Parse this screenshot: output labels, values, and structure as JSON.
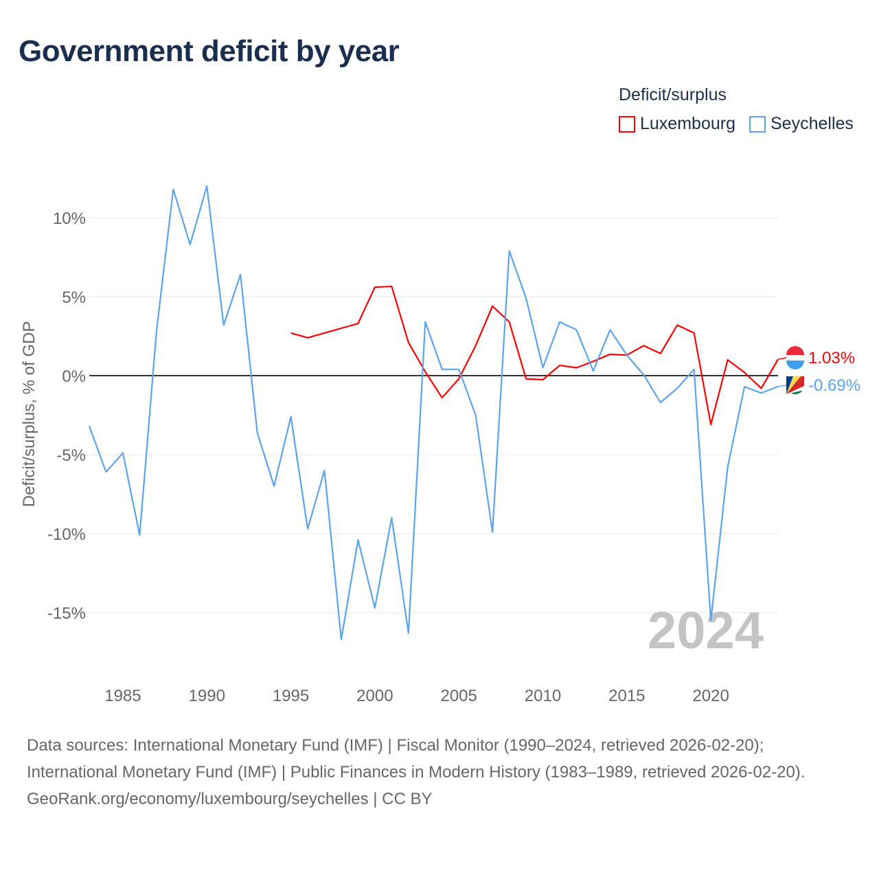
{
  "title": "Government deficit by year",
  "legend": {
    "title": "Deficit/surplus",
    "items": [
      {
        "name": "Luxembourg",
        "color": "#ff0000"
      },
      {
        "name": "Seychelles",
        "color": "#5ba4ec"
      }
    ]
  },
  "footer": {
    "line1": "Data sources: International Monetary Fund (IMF) | Fiscal Monitor (1990–2024, retrieved 2026-02-20); International Monetary Fund (IMF) | Public Finances in Modern History (1983–1989, retrieved 2026-02-20).",
    "line2": "GeoRank.org/economy/luxembourg/seychelles | CC BY"
  },
  "chart_data": {
    "type": "line",
    "title": "Government deficit by year",
    "ylabel": "Deficit/surplus, % of GDP",
    "xlim": [
      1983,
      2024
    ],
    "ylim": [
      -18,
      13
    ],
    "yticks": [
      10,
      5,
      0,
      -5,
      -10,
      -15
    ],
    "ytick_labels": [
      "10%",
      "5%",
      "0%",
      "-5%",
      "-10%",
      "-15%"
    ],
    "xticks": [
      1985,
      1990,
      1995,
      2000,
      2005,
      2010,
      2015,
      2020
    ],
    "year_watermark": "2024",
    "series": [
      {
        "name": "Luxembourg",
        "color": "#ff0000",
        "end_label": "1.03%",
        "start": 1995,
        "values": [
          2.7,
          2.4,
          2.7,
          3.0,
          3.3,
          5.6,
          5.65,
          2.1,
          0.25,
          -1.4,
          -0.2,
          1.9,
          4.4,
          3.4,
          -0.2,
          -0.26,
          0.65,
          0.5,
          0.9,
          1.35,
          1.3,
          1.9,
          1.4,
          3.2,
          2.7,
          -3.1,
          1.0,
          0.2,
          -0.8,
          1.03
        ]
      },
      {
        "name": "Seychelles",
        "color": "#5ba4ec",
        "end_label": "-0.69%",
        "start": 1983,
        "values": [
          -3.2,
          -6.1,
          -4.9,
          -10.1,
          2.8,
          11.8,
          8.3,
          12.0,
          3.2,
          6.4,
          -3.6,
          -7.0,
          -2.6,
          -9.7,
          -6.0,
          -16.7,
          -10.4,
          -14.7,
          -9.0,
          -16.3,
          3.4,
          0.4,
          0.4,
          -2.5,
          -9.9,
          7.9,
          4.9,
          0.5,
          3.4,
          2.9,
          0.3,
          2.9,
          1.3,
          0.05,
          -1.7,
          -0.8,
          0.4,
          -15.5,
          -5.8,
          -0.7,
          -1.1,
          -0.69
        ]
      }
    ]
  }
}
